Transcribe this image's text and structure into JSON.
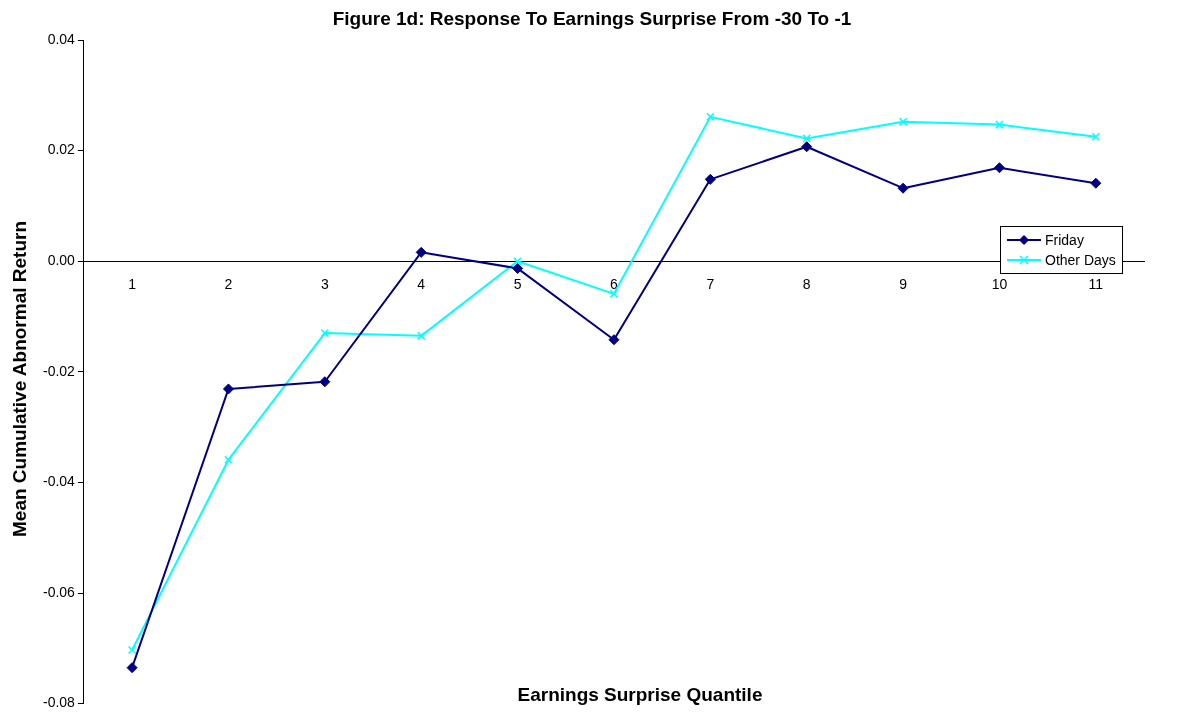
{
  "chart_data": {
    "type": "line",
    "title": "Figure 1d: Response To Earnings Surprise From -30 To -1",
    "xlabel": "Earnings Surprise Quantile",
    "ylabel": "Mean Cumulative Abnormal Return",
    "categories": [
      "1",
      "2",
      "3",
      "4",
      "5",
      "6",
      "7",
      "8",
      "9",
      "10",
      "11"
    ],
    "series": [
      {
        "name": "Friday",
        "color": "#000080",
        "marker": "diamond",
        "values": [
          -0.0735,
          -0.0231,
          -0.0218,
          0.0016,
          -0.0013,
          -0.0142,
          0.0148,
          0.0207,
          0.0132,
          0.0169,
          0.0141
        ]
      },
      {
        "name": "Other Days",
        "color": "#00ffff",
        "marker": "cross",
        "values": [
          -0.0703,
          -0.0359,
          -0.013,
          -0.0135,
          0,
          -0.0059,
          0.0261,
          0.0222,
          0.0252,
          0.0247,
          0.0225
        ]
      }
    ],
    "ylim": [
      -0.08,
      0.04
    ],
    "yticks": [
      {
        "value": -0.08,
        "label": "-0.08"
      },
      {
        "value": -0.06,
        "label": "-0.06"
      },
      {
        "value": -0.04,
        "label": "-0.04"
      },
      {
        "value": -0.02,
        "label": "-0.02"
      },
      {
        "value": 0,
        "label": "0.00"
      },
      {
        "value": 0.02,
        "label": "0.02"
      },
      {
        "value": 0.04,
        "label": "0.04"
      }
    ],
    "grid": false,
    "legend": "right",
    "line_style": "solid"
  }
}
